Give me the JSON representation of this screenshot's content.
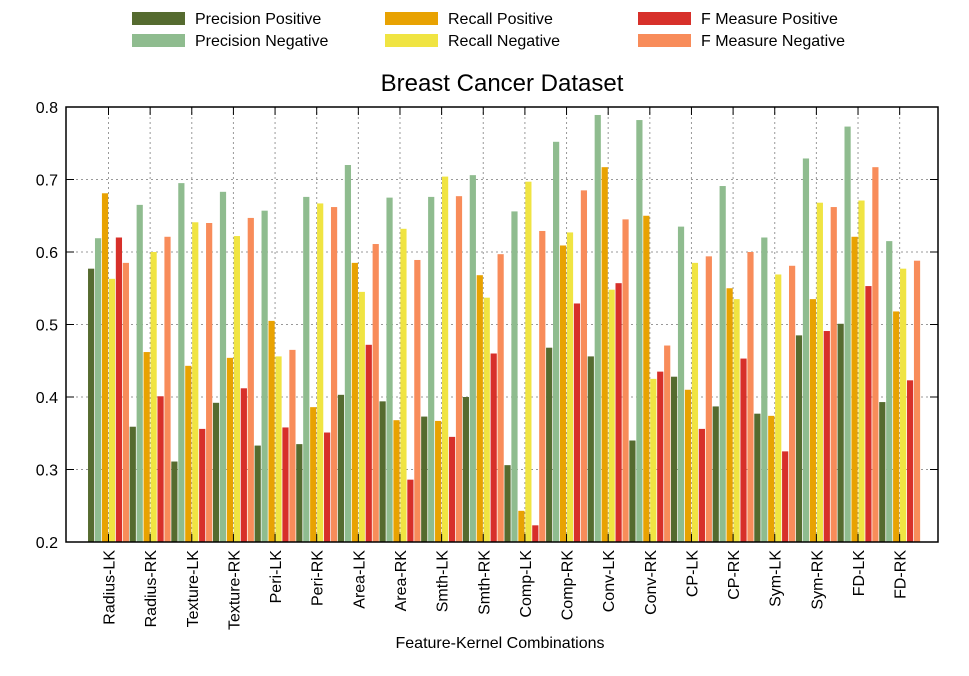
{
  "chart_data": {
    "type": "bar",
    "title": "Breast Cancer Dataset",
    "xlabel": "Feature-Kernel Combinations",
    "ylabel": "",
    "ylim": [
      0.2,
      0.8
    ],
    "yticks": [
      "0.2",
      "0.3",
      "0.4",
      "0.5",
      "0.6",
      "0.7",
      "0.8"
    ],
    "grid": true,
    "legend_position": "top",
    "categories": [
      "Radius-LK",
      "Radius-RK",
      "Texture-LK",
      "Texture-RK",
      "Peri-LK",
      "Peri-RK",
      "Area-LK",
      "Area-RK",
      "Smth-LK",
      "Smth-RK",
      "Comp-LK",
      "Comp-RK",
      "Conv-LK",
      "Conv-RK",
      "CP-LK",
      "CP-RK",
      "Sym-LK",
      "Sym-RK",
      "FD-LK",
      "FD-RK"
    ],
    "series": [
      {
        "name": "Precision Positive",
        "color": "#556b2f",
        "values": [
          0.577,
          0.359,
          0.311,
          0.392,
          0.333,
          0.335,
          0.403,
          0.394,
          0.373,
          0.4,
          0.306,
          0.468,
          0.456,
          0.34,
          0.428,
          0.387,
          0.377,
          0.485,
          0.501,
          0.393
        ]
      },
      {
        "name": "Precision Negative",
        "color": "#8fbc8f",
        "values": [
          0.619,
          0.665,
          0.695,
          0.683,
          0.657,
          0.676,
          0.72,
          0.675,
          0.676,
          0.706,
          0.656,
          0.752,
          0.789,
          0.782,
          0.635,
          0.691,
          0.62,
          0.729,
          0.773,
          0.615
        ]
      },
      {
        "name": "Recall Positive",
        "color": "#e8a202",
        "values": [
          0.681,
          0.462,
          0.443,
          0.454,
          0.505,
          0.386,
          0.585,
          0.368,
          0.367,
          0.568,
          0.243,
          0.609,
          0.717,
          0.65,
          0.41,
          0.55,
          0.374,
          0.535,
          0.621,
          0.518
        ]
      },
      {
        "name": "Recall Negative",
        "color": "#f0e442",
        "values": [
          0.563,
          0.6,
          0.641,
          0.622,
          0.456,
          0.667,
          0.545,
          0.632,
          0.704,
          0.537,
          0.697,
          0.627,
          0.548,
          0.425,
          0.585,
          0.535,
          0.569,
          0.668,
          0.671,
          0.577
        ]
      },
      {
        "name": "F Measure Positive",
        "color": "#d7302a",
        "values": [
          0.62,
          0.401,
          0.356,
          0.412,
          0.358,
          0.351,
          0.472,
          0.286,
          0.345,
          0.46,
          0.223,
          0.529,
          0.557,
          0.435,
          0.356,
          0.453,
          0.325,
          0.491,
          0.553,
          0.423
        ]
      },
      {
        "name": "F Measure Negative",
        "color": "#f88c5a",
        "values": [
          0.585,
          0.621,
          0.64,
          0.647,
          0.465,
          0.662,
          0.611,
          0.589,
          0.677,
          0.597,
          0.629,
          0.685,
          0.645,
          0.471,
          0.594,
          0.6,
          0.581,
          0.662,
          0.717,
          0.588
        ]
      }
    ]
  }
}
